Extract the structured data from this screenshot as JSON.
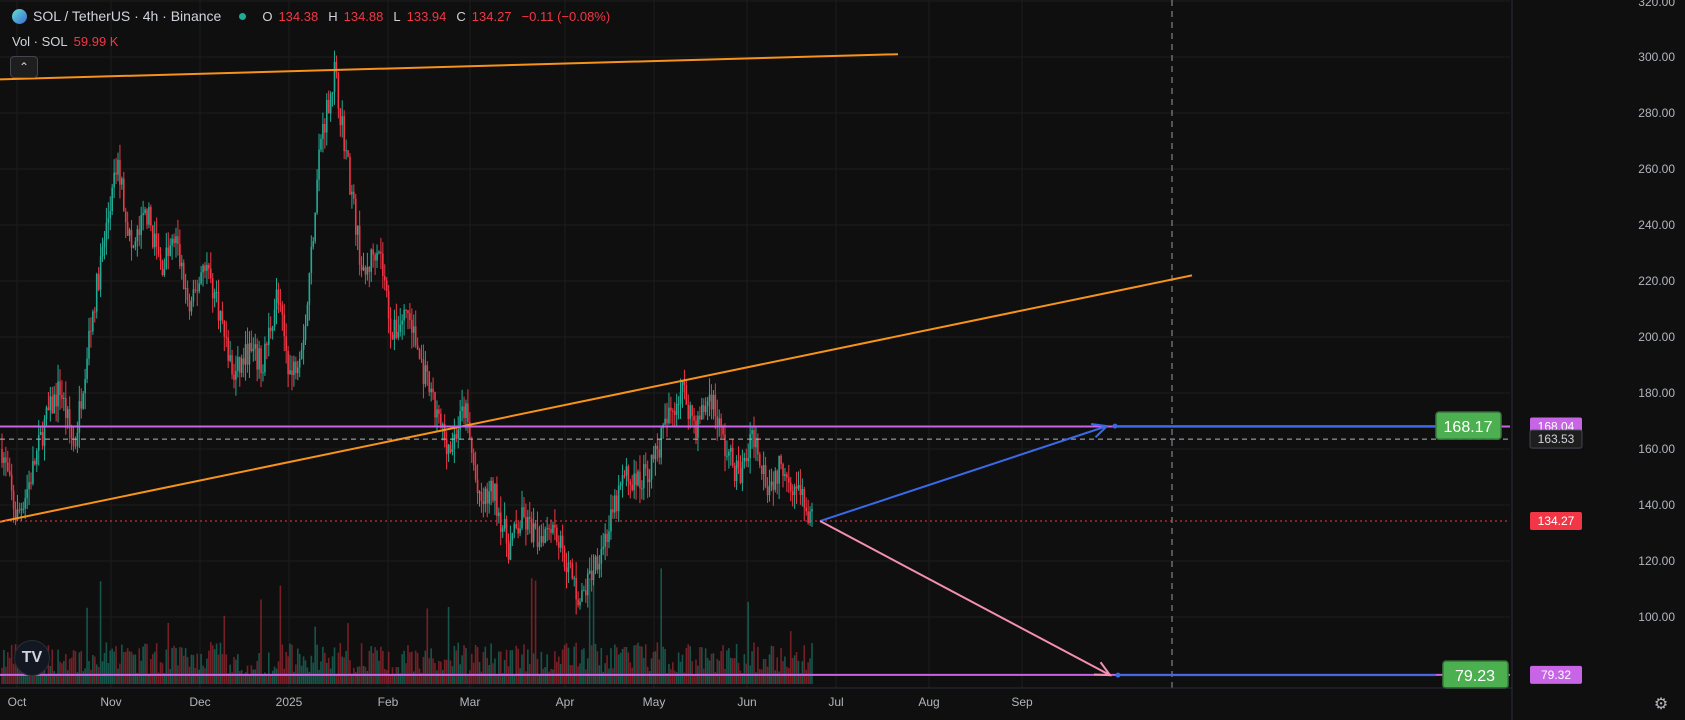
{
  "header": {
    "symbol": "SOL / TetherUS · 4h · Binance",
    "ohlc": [
      {
        "label": "O",
        "value": "134.38"
      },
      {
        "label": "H",
        "value": "134.88"
      },
      {
        "label": "L",
        "value": "133.94"
      },
      {
        "label": "C",
        "value": "134.27"
      }
    ],
    "change": "−0.11 (−0.08%)",
    "volume_label": "Vol · SOL",
    "volume_value": "59.99 K"
  },
  "colors": {
    "background": "#0f0f0f",
    "up": "#22ab94",
    "down": "#f23645",
    "trendline": "#f7931a",
    "level": "#c864e6",
    "arrow_up": "#3a6ae8",
    "arrow_down": "#f48fb1",
    "badge_green": "#4caf50",
    "price_badge": "#f23645"
  },
  "chart_data": {
    "type": "candlestick",
    "y_axis": {
      "ticks": [
        100,
        120,
        140,
        160,
        180,
        200,
        220,
        240,
        260,
        280,
        300,
        320
      ],
      "tick_labels": [
        "100.00",
        "120.00",
        "140.00",
        "160.00",
        "180.00",
        "200.00",
        "220.00",
        "240.00",
        "260.00",
        "280.00",
        "300.00",
        "320.00"
      ],
      "range": [
        80,
        320
      ]
    },
    "x_axis": {
      "labels": [
        "Oct",
        "Nov",
        "Dec",
        "2025",
        "Feb",
        "Mar",
        "Apr",
        "May",
        "Jun",
        "Jul",
        "Aug",
        "Sep"
      ]
    },
    "price_path": [
      [
        "Oct",
        160
      ],
      [
        "Oct",
        135
      ],
      [
        "Oct",
        150
      ],
      [
        "Oct",
        170
      ],
      [
        "Oct",
        182
      ],
      [
        "Nov",
        160
      ],
      [
        "Nov",
        200
      ],
      [
        "Nov",
        232
      ],
      [
        "Nov",
        262
      ],
      [
        "Nov",
        230
      ],
      [
        "Dec",
        245
      ],
      [
        "Dec",
        225
      ],
      [
        "Dec",
        235
      ],
      [
        "Dec",
        208
      ],
      [
        "Dec",
        228
      ],
      [
        "Dec",
        210
      ],
      [
        "Dec",
        185
      ],
      [
        "2025",
        195
      ],
      [
        "2025",
        190
      ],
      [
        "2025",
        215
      ],
      [
        "2025",
        185
      ],
      [
        "2025",
        205
      ],
      [
        "2025",
        270
      ],
      [
        "2025",
        295
      ],
      [
        "Feb",
        258
      ],
      [
        "Feb",
        220
      ],
      [
        "Feb",
        235
      ],
      [
        "Feb",
        200
      ],
      [
        "Feb",
        210
      ],
      [
        "Feb",
        190
      ],
      [
        "Feb",
        172
      ],
      [
        "Mar",
        160
      ],
      [
        "Mar",
        175
      ],
      [
        "Mar",
        140
      ],
      [
        "Mar",
        145
      ],
      [
        "Mar",
        125
      ],
      [
        "Mar",
        135
      ],
      [
        "Mar",
        128
      ],
      [
        "Apr",
        135
      ],
      [
        "Apr",
        120
      ],
      [
        "Apr",
        105
      ],
      [
        "Apr",
        120
      ],
      [
        "Apr",
        132
      ],
      [
        "Apr",
        150
      ],
      [
        "May",
        148
      ],
      [
        "May",
        155
      ],
      [
        "May",
        170
      ],
      [
        "May",
        182
      ],
      [
        "May",
        168
      ],
      [
        "May",
        180
      ],
      [
        "Jun",
        160
      ],
      [
        "Jun",
        150
      ],
      [
        "Jun",
        165
      ],
      [
        "Jun",
        147
      ],
      [
        "Jun",
        155
      ],
      [
        "Jun",
        145
      ],
      [
        "Jun",
        134
      ]
    ],
    "volume_range": [
      0,
      60
    ],
    "horizontal_levels": [
      {
        "value": 168.04,
        "label": "168.04",
        "style": "solid"
      },
      {
        "value": 163.53,
        "label": "163.53",
        "style": "dashed"
      },
      {
        "value": 134.27,
        "label": "134.27",
        "style": "dotted"
      },
      {
        "value": 79.32,
        "label": "79.32",
        "style": "solid"
      }
    ],
    "trendlines": [
      {
        "from": [
          "Oct",
          292
        ],
        "to": [
          "Aug",
          301
        ]
      },
      {
        "from": [
          "Oct",
          134
        ],
        "to": [
          "Sep",
          222
        ]
      }
    ],
    "projections": [
      {
        "from": [
          "Jul",
          134.27
        ],
        "to": [
          "Sep",
          168.17
        ],
        "target_label": "168.17"
      },
      {
        "from": [
          "Jul",
          134.27
        ],
        "to": [
          "Sep",
          79.23
        ],
        "target_label": "79.23"
      }
    ],
    "current_price": "134.27"
  },
  "controls": {
    "collapse_glyph": "⌃",
    "logo_glyph": "TV",
    "gear_glyph": "⚙"
  }
}
